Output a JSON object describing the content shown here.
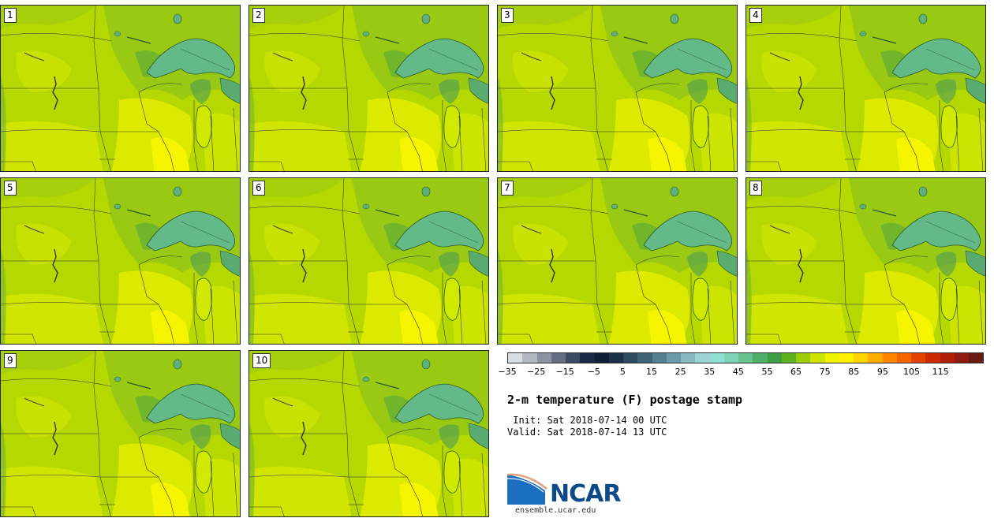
{
  "panels": [
    {
      "label": "1"
    },
    {
      "label": "2"
    },
    {
      "label": "3"
    },
    {
      "label": "4"
    },
    {
      "label": "5"
    },
    {
      "label": "6"
    },
    {
      "label": "7"
    },
    {
      "label": "8"
    },
    {
      "label": "9"
    },
    {
      "label": "10"
    }
  ],
  "colorbar": {
    "colors": [
      "#d8dde3",
      "#b2b8c2",
      "#8b93a2",
      "#646e82",
      "#3d4a63",
      "#1c2a46",
      "#0f1e33",
      "#1b3145",
      "#2d4b5c",
      "#3f6475",
      "#55808f",
      "#6d9ca8",
      "#86b8c0",
      "#9fd4d6",
      "#8ee0d2",
      "#7dd3b3",
      "#68c28e",
      "#4faf6a",
      "#3f9e45",
      "#5db31b",
      "#9ccd06",
      "#cde404",
      "#eff200",
      "#fff100",
      "#ffd400",
      "#ffad00",
      "#ff8500",
      "#f66300",
      "#e54400",
      "#cd2a00",
      "#b41d0a",
      "#921a12",
      "#6a1a10"
    ],
    "ticks": [
      "−35",
      "−25",
      "−15",
      "−5",
      "5",
      "15",
      "25",
      "35",
      "45",
      "55",
      "65",
      "75",
      "85",
      "95",
      "105",
      "115"
    ]
  },
  "title": "2-m temperature (F) postage stamp",
  "init": " Init: Sat 2018-07-14 00 UTC",
  "valid": "Valid: Sat 2018-07-14 13 UTC",
  "logo": {
    "text": "NCAR",
    "website": "ensemble.ucar.edu"
  }
}
